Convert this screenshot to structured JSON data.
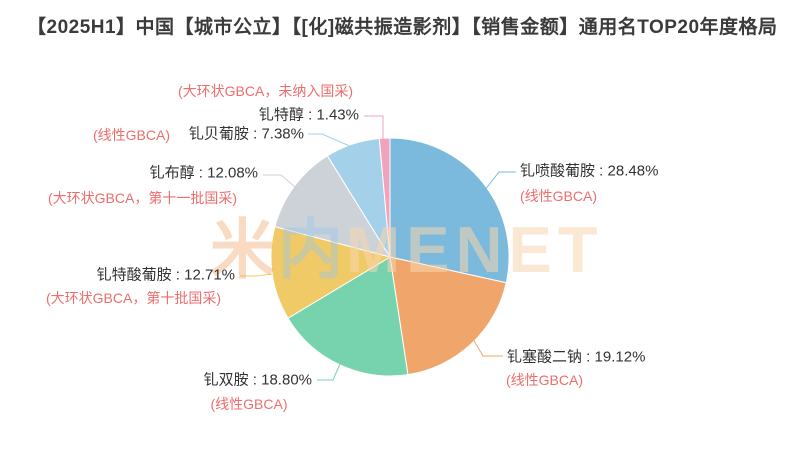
{
  "title": "【2025H1】中国【城市公立】【[化]磁共振造影剂】【销售金额】通用名TOP20年度格局",
  "watermark": {
    "part1": "米",
    "part2": "内",
    "part3": "MENET"
  },
  "colors": {
    "title_text": "#3b3b3b",
    "label_text": "#333333",
    "category_label": "#ee6d6d",
    "background": "#ffffff"
  },
  "chart_data": {
    "type": "pie",
    "title": "【2025H1】中国【城市公立】【[化]磁共振造影剂】【销售金额】通用名TOP20年度格局",
    "unit": "%",
    "start_angle": "12-oclock, clockwise",
    "legend_position": "none",
    "label_separator": " : ",
    "slices": [
      {
        "label": "钆喷酸葡胺",
        "value": 28.48,
        "pct": "28.48%",
        "category": "(线性GBCA)",
        "color": "#7bbadc"
      },
      {
        "label": "钆塞酸二钠",
        "value": 19.12,
        "pct": "19.12%",
        "category": "(线性GBCA)",
        "color": "#f0a66a"
      },
      {
        "label": "钆双胺",
        "value": 18.8,
        "pct": "18.80%",
        "category": "(线性GBCA)",
        "color": "#76d3ae"
      },
      {
        "label": "钆特酸葡胺",
        "value": 12.71,
        "pct": "12.71%",
        "category": "(大环状GBCA，第十批国采)",
        "color": "#efca66"
      },
      {
        "label": "钆布醇",
        "value": 12.08,
        "pct": "12.08%",
        "category": "(大环状GBCA，第十一批国采)",
        "color": "#cdd2d9"
      },
      {
        "label": "钆贝葡胺",
        "value": 7.38,
        "pct": "7.38%",
        "category": "(线性GBCA)",
        "color": "#a4d1e9"
      },
      {
        "label": "钆特醇",
        "value": 1.43,
        "pct": "1.43%",
        "category": "(大环状GBCA，未纳入国采)",
        "color": "#efa3bd"
      }
    ]
  }
}
